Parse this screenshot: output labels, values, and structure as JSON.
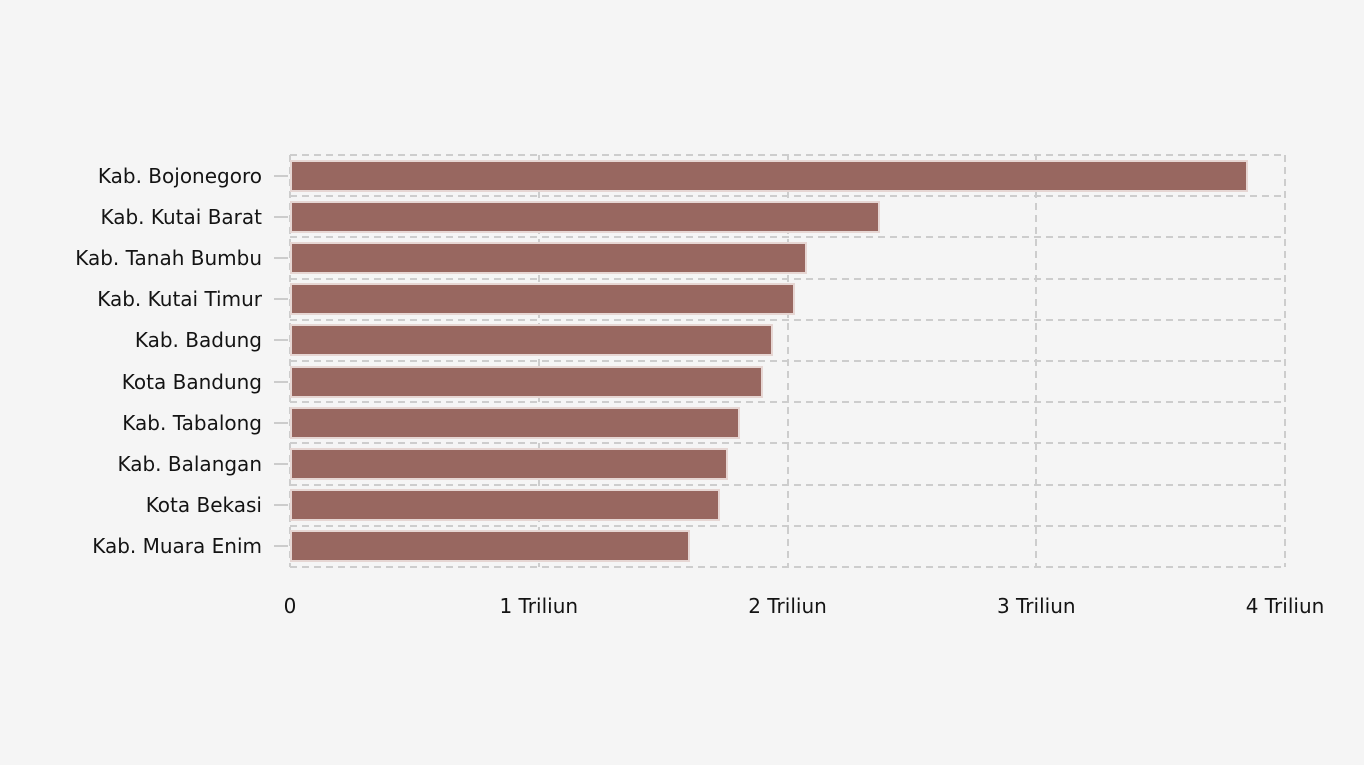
{
  "chart_data": {
    "type": "bar",
    "orientation": "horizontal",
    "title": "",
    "unit": "Triliun",
    "categories": [
      "Kab. Bojonegoro",
      "Kab. Kutai Barat",
      "Kab. Tanah Bumbu",
      "Kab. Kutai Timur",
      "Kab. Badung",
      "Kota Bandung",
      "Kab. Tabalong",
      "Kab. Balangan",
      "Kota Bekasi",
      "Kab. Muara Enim"
    ],
    "values": [
      3.85,
      2.37,
      2.08,
      2.03,
      1.94,
      1.9,
      1.81,
      1.76,
      1.73,
      1.61
    ],
    "xlim": [
      0,
      4
    ],
    "x_ticks": [
      {
        "value": 0,
        "label": "0"
      },
      {
        "value": 1,
        "label": "1 Triliun"
      },
      {
        "value": 2,
        "label": "2 Triliun"
      },
      {
        "value": 3,
        "label": "3 Triliun"
      },
      {
        "value": 4,
        "label": "4 Triliun"
      }
    ],
    "grid": "dashed",
    "legend": "none",
    "colors": {
      "bar": "#986760",
      "bar_border": "#e6d6d3",
      "background": "#f5f5f5",
      "gridline": "#cdcdcd",
      "tick": "#cccccc",
      "text": "#141414"
    }
  }
}
